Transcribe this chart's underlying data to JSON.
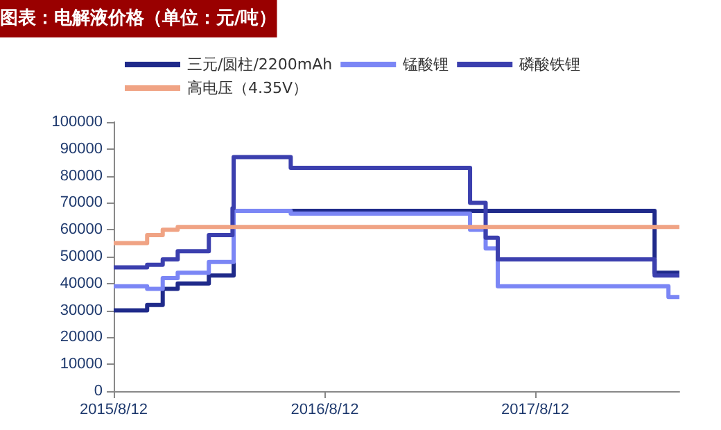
{
  "chart_data": {
    "type": "step",
    "title": "图表：电解液价格（单位：元/吨）",
    "xlim": [
      "2015-08-12",
      "2018-04-19"
    ],
    "xticks": [
      {
        "value": "2015-08-12",
        "label": "2015/8/12"
      },
      {
        "value": "2016-08-12",
        "label": "2016/8/12"
      },
      {
        "value": "2017-08-12",
        "label": "2017/8/12"
      }
    ],
    "ylim": [
      0,
      100000
    ],
    "yticks": [
      0,
      10000,
      20000,
      30000,
      40000,
      50000,
      60000,
      70000,
      80000,
      90000,
      100000
    ],
    "grid": false,
    "legend": "top",
    "marker": "none",
    "line_style": "solid",
    "series": [
      {
        "name": "三元/圆柱/2200mAh",
        "color": "#1f2a8a",
        "x": [
          "2015-08-12",
          "2015-10-09",
          "2015-11-05",
          "2015-12-01",
          "2016-01-24",
          "2016-03-07",
          "2018-03-07",
          "2018-04-19"
        ],
        "values": [
          30000,
          32000,
          38000,
          40000,
          43000,
          67000,
          44000,
          44000
        ]
      },
      {
        "name": "锰酸锂",
        "color": "#7b86f5",
        "x": [
          "2015-08-12",
          "2015-10-09",
          "2015-11-05",
          "2015-12-01",
          "2016-01-24",
          "2016-03-07",
          "2016-06-14",
          "2017-04-21",
          "2017-05-18",
          "2017-06-08",
          "2018-03-31",
          "2018-04-19"
        ],
        "values": [
          39000,
          38000,
          42000,
          44000,
          48000,
          67000,
          66000,
          60000,
          53000,
          39000,
          35000,
          35000
        ]
      },
      {
        "name": "磷酸铁锂",
        "color": "#3b3fae",
        "x": [
          "2015-08-12",
          "2015-10-09",
          "2015-11-05",
          "2015-12-01",
          "2016-01-24",
          "2016-03-05",
          "2016-03-07",
          "2016-06-14",
          "2017-04-21",
          "2017-05-18",
          "2017-06-08",
          "2018-03-07",
          "2018-04-19"
        ],
        "values": [
          46000,
          47000,
          49000,
          52000,
          58000,
          68000,
          87000,
          83000,
          70000,
          57000,
          49000,
          43000,
          43000
        ]
      },
      {
        "name": "高电压（4.35V）",
        "color": "#f0a384",
        "x": [
          "2015-08-12",
          "2015-10-09",
          "2015-11-05",
          "2015-12-01",
          "2018-04-19"
        ],
        "values": [
          55000,
          58000,
          60000,
          61000,
          61000
        ]
      }
    ]
  }
}
